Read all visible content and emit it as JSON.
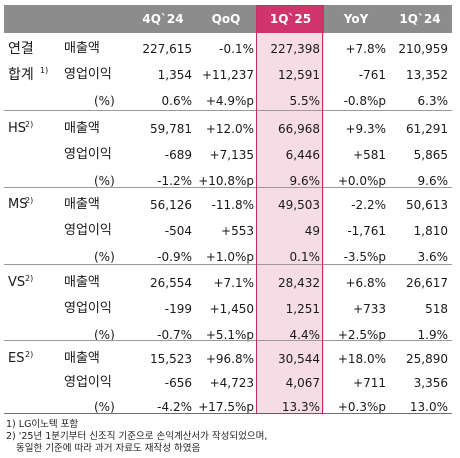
{
  "headers": [
    "4Q`24",
    "QoQ",
    "1Q`25",
    "YoY",
    "1Q`24"
  ],
  "groups": [
    {
      "label": "연결",
      "label2": "합계",
      "label2_sup": "1)",
      "rows": [
        {
          "metric": "매출액",
          "values": [
            "227,615",
            "-0.1%",
            "227,398",
            "+7.8%",
            "210,959"
          ]
        },
        {
          "metric": "영업이익",
          "values": [
            "1,354",
            "+11,237",
            "12,591",
            "-761",
            "13,352"
          ]
        },
        {
          "metric": "(%)",
          "values": [
            "0.6%",
            "+4.9%p",
            "5.5%",
            "-0.8%p",
            "6.3%"
          ]
        }
      ]
    },
    {
      "label": "HS",
      "label_sup": "2)",
      "rows": [
        {
          "metric": "매출액",
          "values": [
            "59,781",
            "+12.0%",
            "66,968",
            "+9.3%",
            "61,291"
          ]
        },
        {
          "metric": "영업이익",
          "values": [
            "-689",
            "+7,135",
            "6,446",
            "+581",
            "5,865"
          ]
        },
        {
          "metric": "(%)",
          "values": [
            "-1.2%",
            "+10.8%p",
            "9.6%",
            "+0.0%p",
            "9.6%"
          ]
        }
      ]
    },
    {
      "label": "MS",
      "label_sup": "2)",
      "rows": [
        {
          "metric": "매출액",
          "values": [
            "56,126",
            "-11.8%",
            "49,503",
            "-2.2%",
            "50,613"
          ]
        },
        {
          "metric": "영업이익",
          "values": [
            "-504",
            "+553",
            "49",
            "-1,761",
            "1,810"
          ]
        },
        {
          "metric": "(%)",
          "values": [
            "-0.9%",
            "+1.0%p",
            "0.1%",
            "-3.5%p",
            "3.6%"
          ]
        }
      ]
    },
    {
      "label": "VS",
      "label_sup": "2)",
      "rows": [
        {
          "metric": "매출액",
          "values": [
            "26,554",
            "+7.1%",
            "28,432",
            "+6.8%",
            "26,617"
          ]
        },
        {
          "metric": "영업이익",
          "values": [
            "-199",
            "+1,450",
            "1,251",
            "+733",
            "518"
          ]
        },
        {
          "metric": "(%)",
          "values": [
            "-0.7%",
            "+5.1%p",
            "4.4%",
            "+2.5%p",
            "1.9%"
          ]
        }
      ]
    },
    {
      "label": "ES",
      "label_sup": "2)",
      "rows": [
        {
          "metric": "매출액",
          "values": [
            "15,523",
            "+96.8%",
            "30,544",
            "+18.0%",
            "25,890"
          ]
        },
        {
          "metric": "영업이익",
          "values": [
            "-656",
            "+4,723",
            "4,067",
            "+711",
            "3,356"
          ]
        },
        {
          "metric": "(%)",
          "values": [
            "-4.2%",
            "+17.5%p",
            "13.3%",
            "+0.3%p",
            "13.0%"
          ]
        }
      ]
    }
  ],
  "footnotes": [
    "1) LG이노텍 포함",
    "2) '25년 1분기부터 신조직 기준으로 손익계산서가 작성되었으며,",
    "동일한 기준에 따라 과거 자료도 재작성 하였음"
  ],
  "colors": {
    "header_gray": "#8c8c8c",
    "highlight_header": "#d1346b",
    "highlight_bg": "#f6dde5",
    "highlight_border": "#c92a62"
  }
}
